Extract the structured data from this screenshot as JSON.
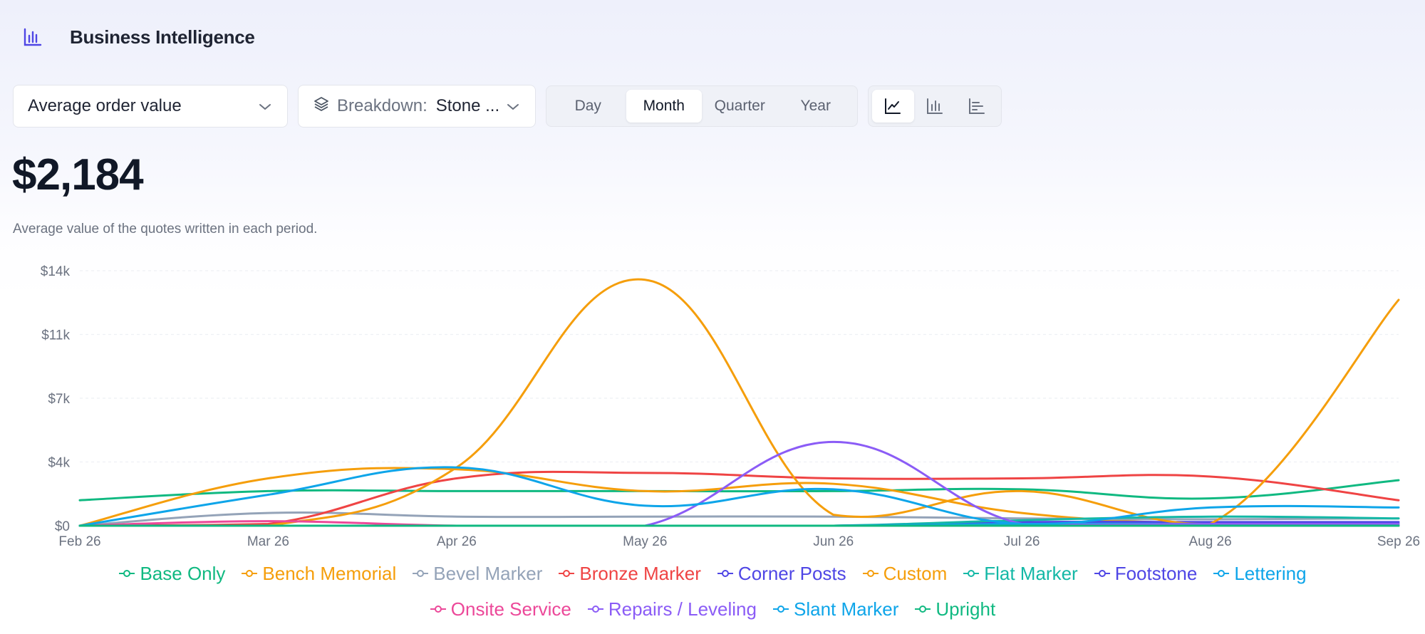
{
  "app": {
    "title": "Business Intelligence",
    "logo_icon": "bar-chart-icon",
    "accent": "#4f46e5"
  },
  "controls": {
    "metric": {
      "value": "Average order value"
    },
    "breakdown": {
      "label": "Breakdown:",
      "value": "Stone ..."
    },
    "periods": [
      {
        "label": "Day",
        "active": false
      },
      {
        "label": "Month",
        "active": true
      },
      {
        "label": "Quarter",
        "active": false
      },
      {
        "label": "Year",
        "active": false
      }
    ],
    "chart_types": [
      {
        "name": "line-chart-icon",
        "active": true
      },
      {
        "name": "bar-chart-icon",
        "active": false
      },
      {
        "name": "horizontal-bar-chart-icon",
        "active": false
      }
    ]
  },
  "summary": {
    "value": "$2,184",
    "description": "Average value of the quotes written in each period."
  },
  "chart_data": {
    "type": "line",
    "title": "",
    "xlabel": "",
    "ylabel": "",
    "x": [
      "Feb 26",
      "Mar 26",
      "Apr 26",
      "May 26",
      "Jun 26",
      "Jul 26",
      "Aug 26",
      "Sep 26"
    ],
    "ylim": [
      0,
      14000
    ],
    "yticks": [
      0,
      3500,
      7000,
      10500,
      14000
    ],
    "ytick_labels": [
      "$0",
      "$4k",
      "$7k",
      "$11k",
      "$14k"
    ],
    "grid": true,
    "legend_position": "bottom",
    "series": [
      {
        "name": "Base Only",
        "color": "#10b981",
        "values": [
          1400,
          1900,
          1900,
          1900,
          1900,
          2000,
          1500,
          2500
        ]
      },
      {
        "name": "Bench Memorial",
        "color": "#f59e0b",
        "values": [
          0,
          2600,
          3100,
          1900,
          2300,
          700,
          100,
          100
        ]
      },
      {
        "name": "Bevel Marker",
        "color": "#94a3b8",
        "values": [
          0,
          700,
          500,
          500,
          500,
          400,
          350,
          400
        ]
      },
      {
        "name": "Bronze Marker",
        "color": "#ef4444",
        "values": [
          0,
          100,
          2600,
          2900,
          2600,
          2600,
          2700,
          1400
        ]
      },
      {
        "name": "Corner Posts",
        "color": "#4f46e5",
        "values": [
          0,
          0,
          0,
          0,
          0,
          200,
          200,
          200
        ]
      },
      {
        "name": "Custom",
        "color": "#f59e0b",
        "values": [
          0,
          0,
          3200,
          13500,
          600,
          1900,
          100,
          12400
        ]
      },
      {
        "name": "Flat Marker",
        "color": "#14b8a6",
        "values": [
          0,
          0,
          0,
          0,
          0,
          300,
          500,
          400
        ]
      },
      {
        "name": "Footstone",
        "color": "#4f46e5",
        "values": [
          0,
          0,
          0,
          0,
          0,
          100,
          100,
          100
        ]
      },
      {
        "name": "Lettering",
        "color": "#0ea5e9",
        "values": [
          0,
          0,
          0,
          0,
          0,
          100,
          100,
          100
        ]
      },
      {
        "name": "Onsite Service",
        "color": "#ec4899",
        "values": [
          0,
          250,
          0,
          0,
          0,
          0,
          0,
          0
        ]
      },
      {
        "name": "Repairs / Leveling",
        "color": "#8b5cf6",
        "values": [
          0,
          0,
          0,
          0,
          4600,
          100,
          100,
          100
        ]
      },
      {
        "name": "Slant Marker",
        "color": "#0ea5e9",
        "values": [
          0,
          1700,
          3200,
          1100,
          2000,
          100,
          1000,
          1000
        ]
      },
      {
        "name": "Upright",
        "color": "#10b981",
        "values": [
          0,
          0,
          0,
          0,
          0,
          0,
          0,
          0
        ]
      }
    ]
  }
}
